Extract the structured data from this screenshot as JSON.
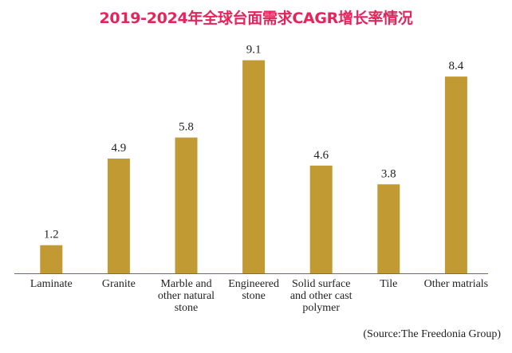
{
  "chart_data": {
    "type": "bar",
    "title": "2019-2024年全球台面需求CAGR增长率情况",
    "categories": [
      [
        "Laminate"
      ],
      [
        "Granite"
      ],
      [
        "Marble and",
        "other natural",
        "stone"
      ],
      [
        "Engineered",
        "stone"
      ],
      [
        "Solid surface",
        "and other cast",
        "polymer"
      ],
      [
        "Tile"
      ],
      [
        "Other matrials"
      ]
    ],
    "values": [
      1.2,
      4.9,
      5.8,
      9.1,
      4.6,
      3.8,
      8.4
    ],
    "value_labels": [
      "1.2",
      "4.9",
      "5.8",
      "9.1",
      "4.6",
      "3.8",
      "8.4"
    ],
    "xlabel": "",
    "ylabel": "",
    "ylim": [
      0,
      9.8
    ],
    "grid": false,
    "colors": {
      "bar": "#c19a33",
      "axis": "#8a6d1a",
      "title": "#e5245b",
      "text": "#222222"
    }
  },
  "source": {
    "open": "(Source:",
    "name": "The Freedonia Group)"
  }
}
